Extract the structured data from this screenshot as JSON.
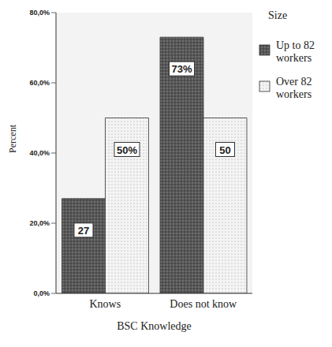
{
  "chart_data": {
    "type": "bar",
    "categories": [
      "Knows",
      "Does not know"
    ],
    "series": [
      {
        "name": "Up to 82 workers",
        "color": "#6e6e6e",
        "values": [
          27,
          73
        ],
        "value_labels": [
          "27",
          "73%"
        ]
      },
      {
        "name": "Over 82 workers",
        "color": "#f4f4f4",
        "values": [
          50,
          50
        ],
        "value_labels": [
          "50%",
          "50"
        ]
      }
    ],
    "x_label": "BSC Knowledge",
    "y_label": "Percent",
    "legend_title": "Size",
    "legend": "right",
    "ylim": [
      0,
      80
    ],
    "yticks": [
      {
        "value": 0,
        "label": "0,0%"
      },
      {
        "value": 20,
        "label": "20,0%"
      },
      {
        "value": 40,
        "label": "40,0%"
      },
      {
        "value": 60,
        "label": "60,0%"
      },
      {
        "value": 80,
        "label": "80,0%"
      }
    ],
    "grid": false,
    "data_labels": true
  }
}
